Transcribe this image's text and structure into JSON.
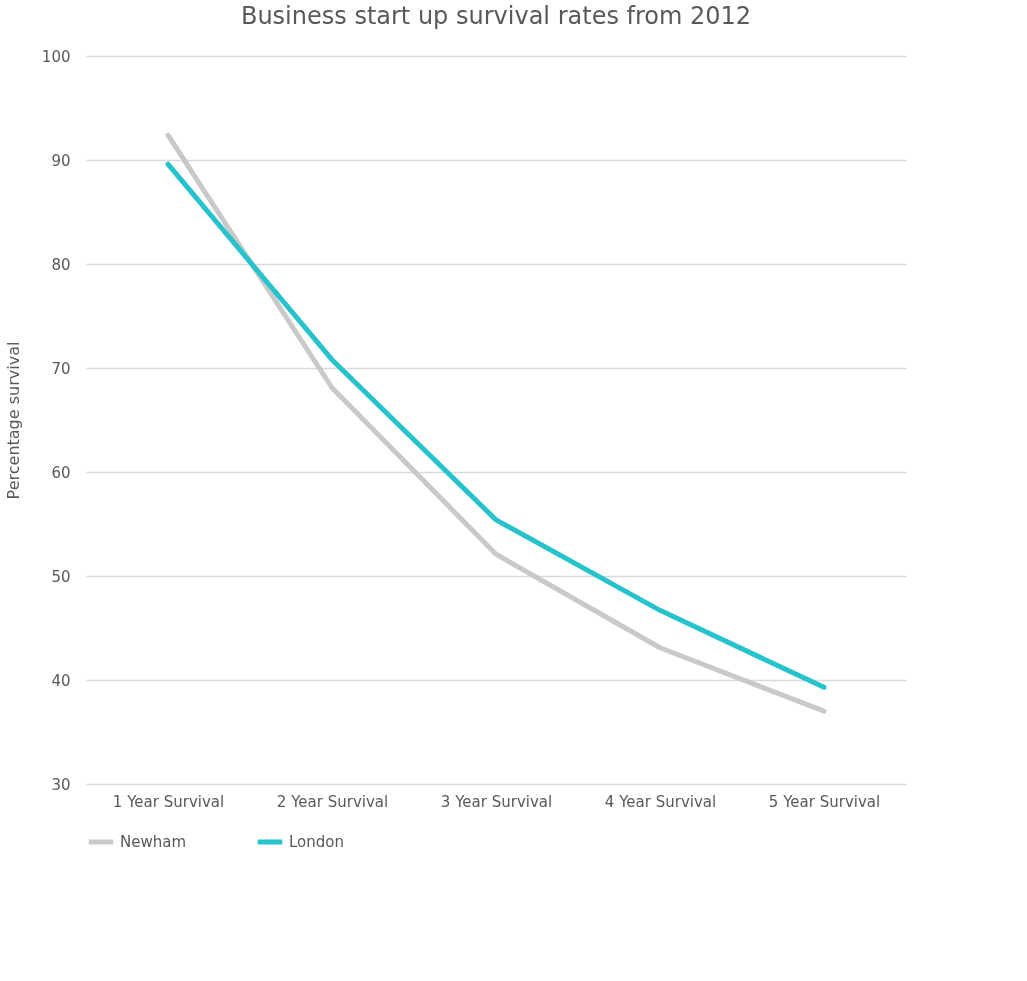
{
  "chart_data": {
    "type": "line",
    "title": "Business start up survival rates from 2012",
    "ylabel": "Percentage survival",
    "categories": [
      "1 Year Survival",
      "2 Year Survival",
      "3 Year Survival",
      "4 Year Survival",
      "5 Year Survival"
    ],
    "series": [
      {
        "name": "Newham",
        "color": "#c9c9c9",
        "values": [
          92.4,
          68.1,
          52.1,
          43.1,
          37.0
        ]
      },
      {
        "name": "London",
        "color": "#26c3cc",
        "values": [
          89.6,
          70.8,
          55.4,
          46.7,
          39.3
        ]
      }
    ],
    "ylim": [
      30,
      100
    ],
    "yticks": [
      30,
      40,
      50,
      60,
      70,
      80,
      90,
      100
    ],
    "grid": "y",
    "legend": "bottom",
    "marker": "none",
    "line_style": "solid"
  }
}
